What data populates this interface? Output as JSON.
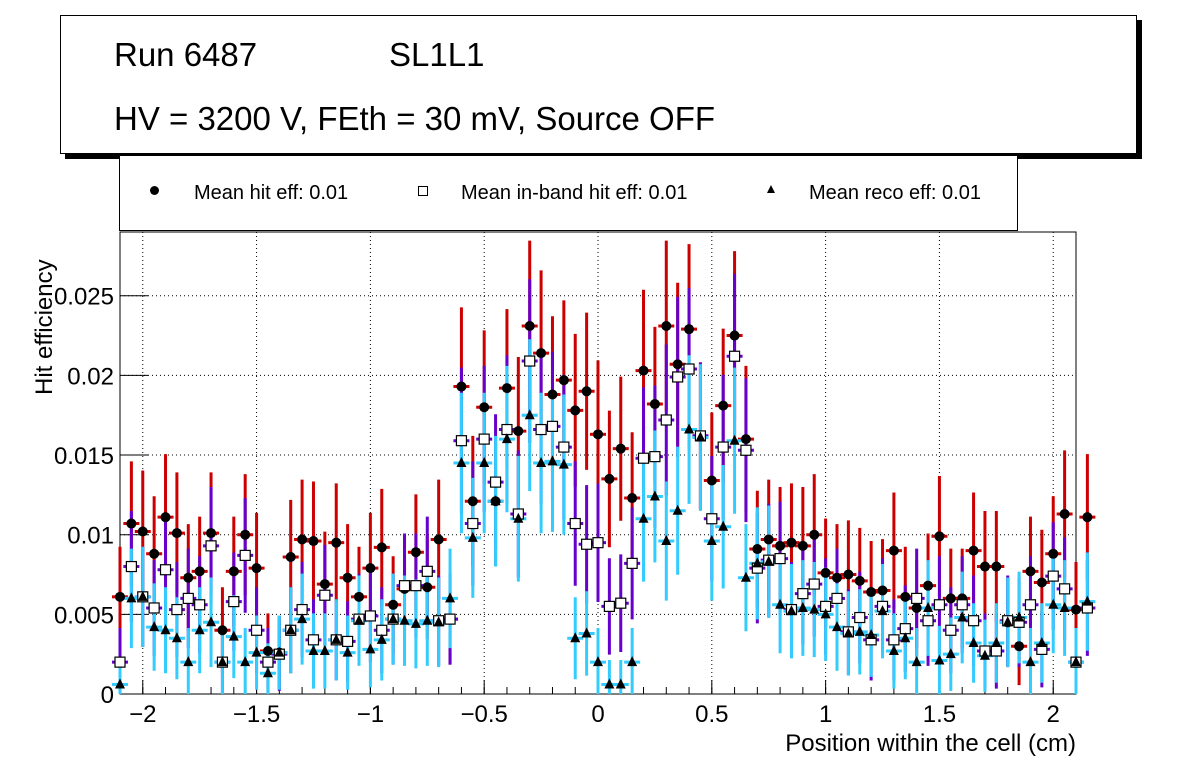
{
  "title_box": {
    "run_label": "Run 6487",
    "layer_label": "SL1L1",
    "conditions": "HV = 3200 V, FEth = 30 mV, Source OFF"
  },
  "legend": [
    {
      "label": "Mean hit  eff: 0.01",
      "marker": "filled-circle"
    },
    {
      "label": "Mean in-band hit eff: 0.01",
      "marker": "open-square"
    },
    {
      "label": "Mean reco eff: 0.01",
      "marker": "filled-triangle"
    }
  ],
  "colors": {
    "hit_error": "#cc0000",
    "inband_error": "#6600cc",
    "reco_error": "#33ccff",
    "marker": "#000000",
    "grid": "#000000"
  },
  "chart_data": {
    "type": "scatter",
    "title": "",
    "xlabel": "Position within the cell (cm)",
    "ylabel": "Hit efficiency",
    "xlim": [
      -2.1,
      2.1
    ],
    "ylim": [
      0,
      0.029
    ],
    "grid": true,
    "legend_position": "top",
    "x_ticks": [
      -2,
      -1.5,
      -1,
      -0.5,
      0,
      0.5,
      1,
      1.5,
      2
    ],
    "x_tick_labels": [
      "−2",
      "−1.5",
      "−1",
      "−0.5",
      "0",
      "0.5",
      "1",
      "1.5",
      "2"
    ],
    "y_ticks": [
      0,
      0.005,
      0.01,
      0.015,
      0.02,
      0.025
    ],
    "y_tick_labels": [
      "0",
      "0.005",
      "0.01",
      "0.015",
      "0.02",
      "0.025"
    ],
    "x_start": -2.1,
    "x_step": 0.05,
    "series": [
      {
        "name": "Mean hit  eff: 0.01",
        "marker": "filled-circle",
        "values": [
          0.0061,
          0.0107,
          0.0102,
          0.0088,
          0.0111,
          0.0101,
          0.0073,
          0.0077,
          0.0101,
          0.004,
          0.0077,
          0.01,
          0.0079,
          0.0027,
          0.0026,
          0.0086,
          0.0097,
          0.0096,
          0.0069,
          0.0095,
          0.0073,
          0.0061,
          0.0079,
          0.0092,
          0.0056,
          0.0066,
          0.0089,
          0.0067,
          0.0097,
          0.0047,
          0.0193,
          0.0121,
          0.018,
          0.0121,
          0.0192,
          0.0165,
          0.0231,
          0.0214,
          0.0188,
          0.0197,
          0.0178,
          0.019,
          0.0163,
          0.0135,
          0.0154,
          0.0123,
          0.0203,
          0.0182,
          0.0231,
          0.0207,
          0.0229,
          0.0162,
          0.0134,
          0.0181,
          0.0225,
          0.016,
          0.0091,
          0.0097,
          0.0093,
          0.0095,
          0.0093,
          0.01,
          0.0076,
          0.0073,
          0.0075,
          0.0071,
          0.0064,
          0.0065,
          0.009,
          0.0061,
          0.0054,
          0.0068,
          0.0099,
          0.006,
          0.006,
          0.009,
          0.008,
          0.008,
          0.0045,
          0.003,
          0.0077,
          0.007,
          0.0088,
          0.0113,
          0.0053,
          0.0111
        ]
      },
      {
        "name": "Mean in-band hit eff: 0.01",
        "marker": "open-square",
        "values": [
          0.002,
          0.008,
          0.0061,
          0.0054,
          0.0078,
          0.0053,
          0.006,
          0.0056,
          0.0093,
          0.002,
          0.0058,
          0.0087,
          0.004,
          0.002,
          0.0025,
          0.004,
          0.0053,
          0.0034,
          0.0062,
          0.0034,
          0.0033,
          0.0047,
          0.0049,
          0.004,
          0.0047,
          0.0068,
          0.0068,
          0.0077,
          0.0046,
          0.0047,
          0.0159,
          0.0107,
          0.016,
          0.0133,
          0.0166,
          0.0113,
          0.0209,
          0.0166,
          0.0168,
          0.0155,
          0.0107,
          0.0094,
          0.0095,
          0.0055,
          0.0057,
          0.0082,
          0.0148,
          0.0149,
          0.0172,
          0.0199,
          0.0204,
          0.0162,
          0.011,
          0.0155,
          0.0212,
          0.0153,
          0.0079,
          0.0084,
          0.0085,
          0.0053,
          0.0063,
          0.0069,
          0.0055,
          0.006,
          0.0039,
          0.0048,
          0.0034,
          0.0055,
          0.0034,
          0.0041,
          0.006,
          0.0046,
          0.0056,
          0.004,
          0.0056,
          0.0046,
          0.0027,
          0.0027,
          0.0046,
          0.0045,
          0.0056,
          0.0028,
          0.0074,
          0.0066,
          0.002,
          0.0054
        ]
      },
      {
        "name": "Mean reco eff: 0.01",
        "marker": "filled-triangle",
        "values": [
          0.0006,
          0.006,
          0.0061,
          0.0042,
          0.004,
          0.0035,
          0.002,
          0.004,
          0.0045,
          0.002,
          0.0036,
          0.002,
          0.0026,
          0.0013,
          0.0026,
          0.004,
          0.0047,
          0.0027,
          0.0027,
          0.0034,
          0.0026,
          0.0046,
          0.0028,
          0.0034,
          0.0047,
          0.0046,
          0.0044,
          0.0046,
          0.0045,
          0.006,
          0.0145,
          0.0098,
          0.0145,
          0.0121,
          0.016,
          0.011,
          0.0175,
          0.0145,
          0.0146,
          0.0144,
          0.0035,
          0.0038,
          0.002,
          0.0006,
          0.0006,
          0.002,
          0.011,
          0.0124,
          0.0096,
          0.0115,
          0.0166,
          0.0161,
          0.0096,
          0.0105,
          0.0159,
          0.0073,
          0.0082,
          0.0083,
          0.0056,
          0.0052,
          0.0054,
          0.0053,
          0.005,
          0.0042,
          0.0038,
          0.0039,
          0.0037,
          0.0052,
          0.0027,
          0.0035,
          0.002,
          0.0054,
          0.0021,
          0.0025,
          0.0048,
          0.0032,
          0.0024,
          0.0032,
          0.0045,
          0.0048,
          0.002,
          0.0032,
          0.0056,
          0.0054,
          0.002,
          0.0058
        ]
      }
    ]
  }
}
